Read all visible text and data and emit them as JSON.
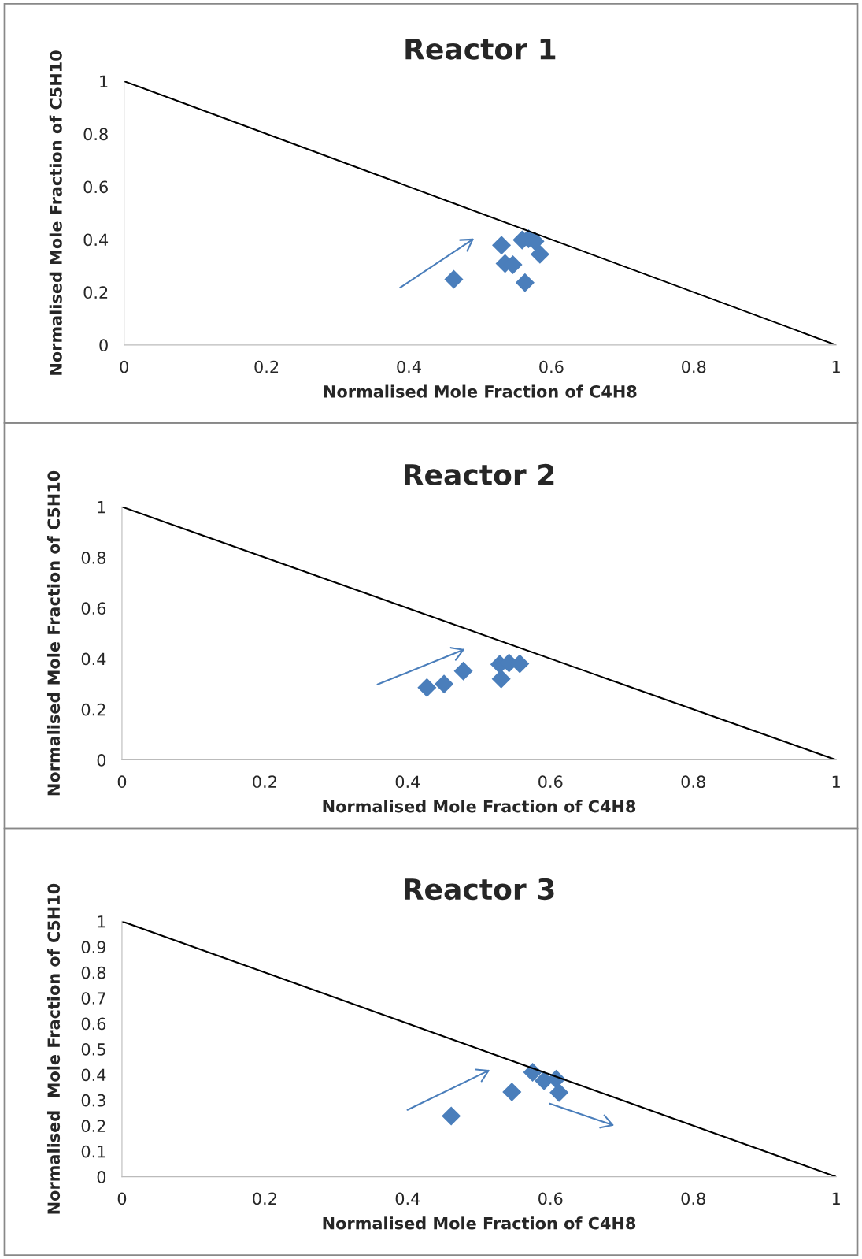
{
  "chart_data": [
    {
      "type": "scatter",
      "title": "Reactor 1",
      "xlabel": "Normalised Mole Fraction of C4H8",
      "ylabel": "Normalised Mole Fraction of C5H10",
      "xlim": [
        0,
        1
      ],
      "ylim": [
        0,
        1
      ],
      "xticks": [
        0,
        0.2,
        0.4,
        0.6,
        0.8,
        1
      ],
      "yticks": [
        0,
        0.2,
        0.4,
        0.6,
        0.8,
        1
      ],
      "grid": false,
      "legend": false,
      "series": [
        {
          "type": "line",
          "color": "#000000",
          "marker": "none",
          "x": [
            0,
            1
          ],
          "values": [
            1,
            0
          ]
        },
        {
          "type": "scatter",
          "color": "#4a7ebb",
          "marker": "diamond",
          "x": [
            0.463,
            0.53,
            0.559,
            0.568,
            0.577,
            0.584,
            0.535,
            0.546,
            0.563
          ],
          "values": [
            0.249,
            0.378,
            0.398,
            0.403,
            0.393,
            0.344,
            0.309,
            0.304,
            0.236
          ]
        }
      ]
    },
    {
      "type": "scatter",
      "title": "Reactor 2",
      "xlabel": "Normalised Mole Fraction of C4H8",
      "ylabel": "Normalised Mole Fraction of C5H10",
      "xlim": [
        0,
        1
      ],
      "ylim": [
        0,
        1
      ],
      "xticks": [
        0,
        0.2,
        0.4,
        0.6,
        0.8,
        1
      ],
      "yticks": [
        0,
        0.2,
        0.4,
        0.6,
        0.8,
        1
      ],
      "grid": false,
      "legend": false,
      "series": [
        {
          "type": "line",
          "color": "#000000",
          "marker": "none",
          "x": [
            0,
            1
          ],
          "values": [
            1,
            0
          ]
        },
        {
          "type": "scatter",
          "color": "#4a7ebb",
          "marker": "diamond",
          "x": [
            0.427,
            0.451,
            0.478,
            0.531,
            0.529,
            0.542,
            0.557
          ],
          "values": [
            0.286,
            0.3,
            0.351,
            0.32,
            0.378,
            0.383,
            0.38
          ]
        }
      ]
    },
    {
      "type": "scatter",
      "title": "Reactor 3",
      "xlabel": "Normalised Mole Fraction of C4H8",
      "ylabel": "Normalised  Mole Fraction of C5H10",
      "xlim": [
        0,
        1
      ],
      "ylim": [
        0,
        1
      ],
      "xticks": [
        0,
        0.2,
        0.4,
        0.6,
        0.8,
        1
      ],
      "yticks": [
        0,
        0.1,
        0.2,
        0.3,
        0.4,
        0.5,
        0.6,
        0.7,
        0.8,
        0.9,
        1
      ],
      "grid": false,
      "legend": false,
      "series": [
        {
          "type": "line",
          "color": "#000000",
          "marker": "none",
          "x": [
            0,
            1
          ],
          "values": [
            1,
            0
          ]
        },
        {
          "type": "scatter",
          "color": "#4a7ebb",
          "marker": "diamond",
          "x": [
            0.461,
            0.546,
            0.575,
            0.591,
            0.608,
            0.612
          ],
          "values": [
            0.238,
            0.332,
            0.409,
            0.376,
            0.382,
            0.33
          ]
        }
      ]
    }
  ]
}
